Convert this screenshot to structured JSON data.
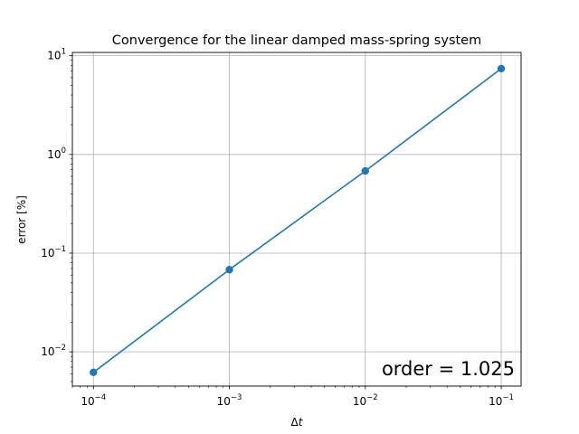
{
  "chart_data": {
    "type": "line",
    "title": "Convergence for the linear damped mass-spring system",
    "xlabel_base": "Δ",
    "xlabel_var": "t",
    "ylabel": "error [%]",
    "xscale": "log",
    "yscale": "log",
    "xlim": [
      7e-05,
      0.14
    ],
    "ylim": [
      0.0045,
      10.8
    ],
    "grid": true,
    "x": [
      0.0001,
      0.001,
      0.01,
      0.1
    ],
    "y": [
      0.0062,
      0.068,
      0.68,
      7.4
    ],
    "xtick_labels": [
      {
        "value": 0.0001,
        "base": "10",
        "exp": "−4"
      },
      {
        "value": 0.001,
        "base": "10",
        "exp": "−3"
      },
      {
        "value": 0.01,
        "base": "10",
        "exp": "−2"
      },
      {
        "value": 0.1,
        "base": "10",
        "exp": "−1"
      }
    ],
    "ytick_labels": [
      {
        "value": 0.01,
        "base": "10",
        "exp": "−2"
      },
      {
        "value": 0.1,
        "base": "10",
        "exp": "−1"
      },
      {
        "value": 1,
        "base": "10",
        "exp": "0"
      },
      {
        "value": 10,
        "base": "10",
        "exp": "1"
      }
    ],
    "annotation": "order = 1.025",
    "annotation_placement": "bottom-right",
    "line_color": "#1f77b4",
    "grid_color": "#b0b0b0"
  }
}
